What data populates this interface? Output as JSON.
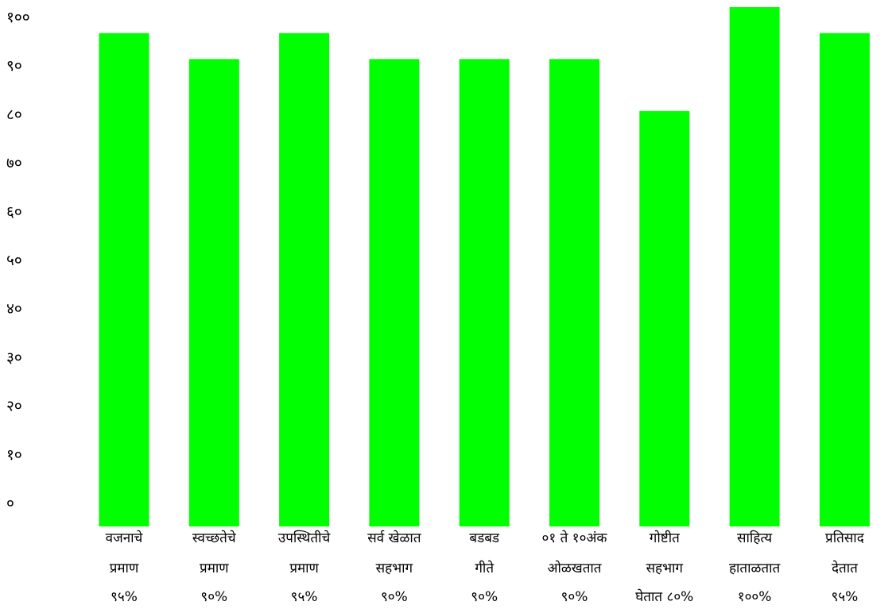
{
  "chart_data": {
    "type": "bar",
    "title": "",
    "xlabel": "",
    "ylabel": "",
    "ylim": [
      0,
      100
    ],
    "y_ticks": [
      "०",
      "१०",
      "२०",
      "३०",
      "४०",
      "५०",
      "६०",
      "७०",
      "८०",
      "९०",
      "१००"
    ],
    "y_tick_values": [
      0,
      10,
      20,
      30,
      40,
      50,
      60,
      70,
      80,
      90,
      100
    ],
    "grid": false,
    "legend": "none",
    "bar_color": "#00ff00",
    "categories": [
      [
        "वजनाचे",
        "प्रमाण",
        "९५%"
      ],
      [
        "स्वच्छतेचे",
        "प्रमाण",
        "९०%"
      ],
      [
        "उपस्थितीचे",
        "प्रमाण",
        "९५%"
      ],
      [
        "सर्व खेळात",
        "सहभाग",
        "९०%"
      ],
      [
        "बडबड",
        "गीते",
        "९०%"
      ],
      [
        "०१ ते १०अंक",
        "ओळखतात",
        "९०%"
      ],
      [
        "गोष्टीत",
        "सहभाग",
        "घेतात ८०%"
      ],
      [
        "साहित्य",
        "हाताळतात",
        "१००%"
      ],
      [
        "प्रतिसाद",
        "देतात",
        "९५%"
      ]
    ],
    "values": [
      95,
      90,
      95,
      90,
      90,
      90,
      80,
      100,
      95
    ]
  }
}
